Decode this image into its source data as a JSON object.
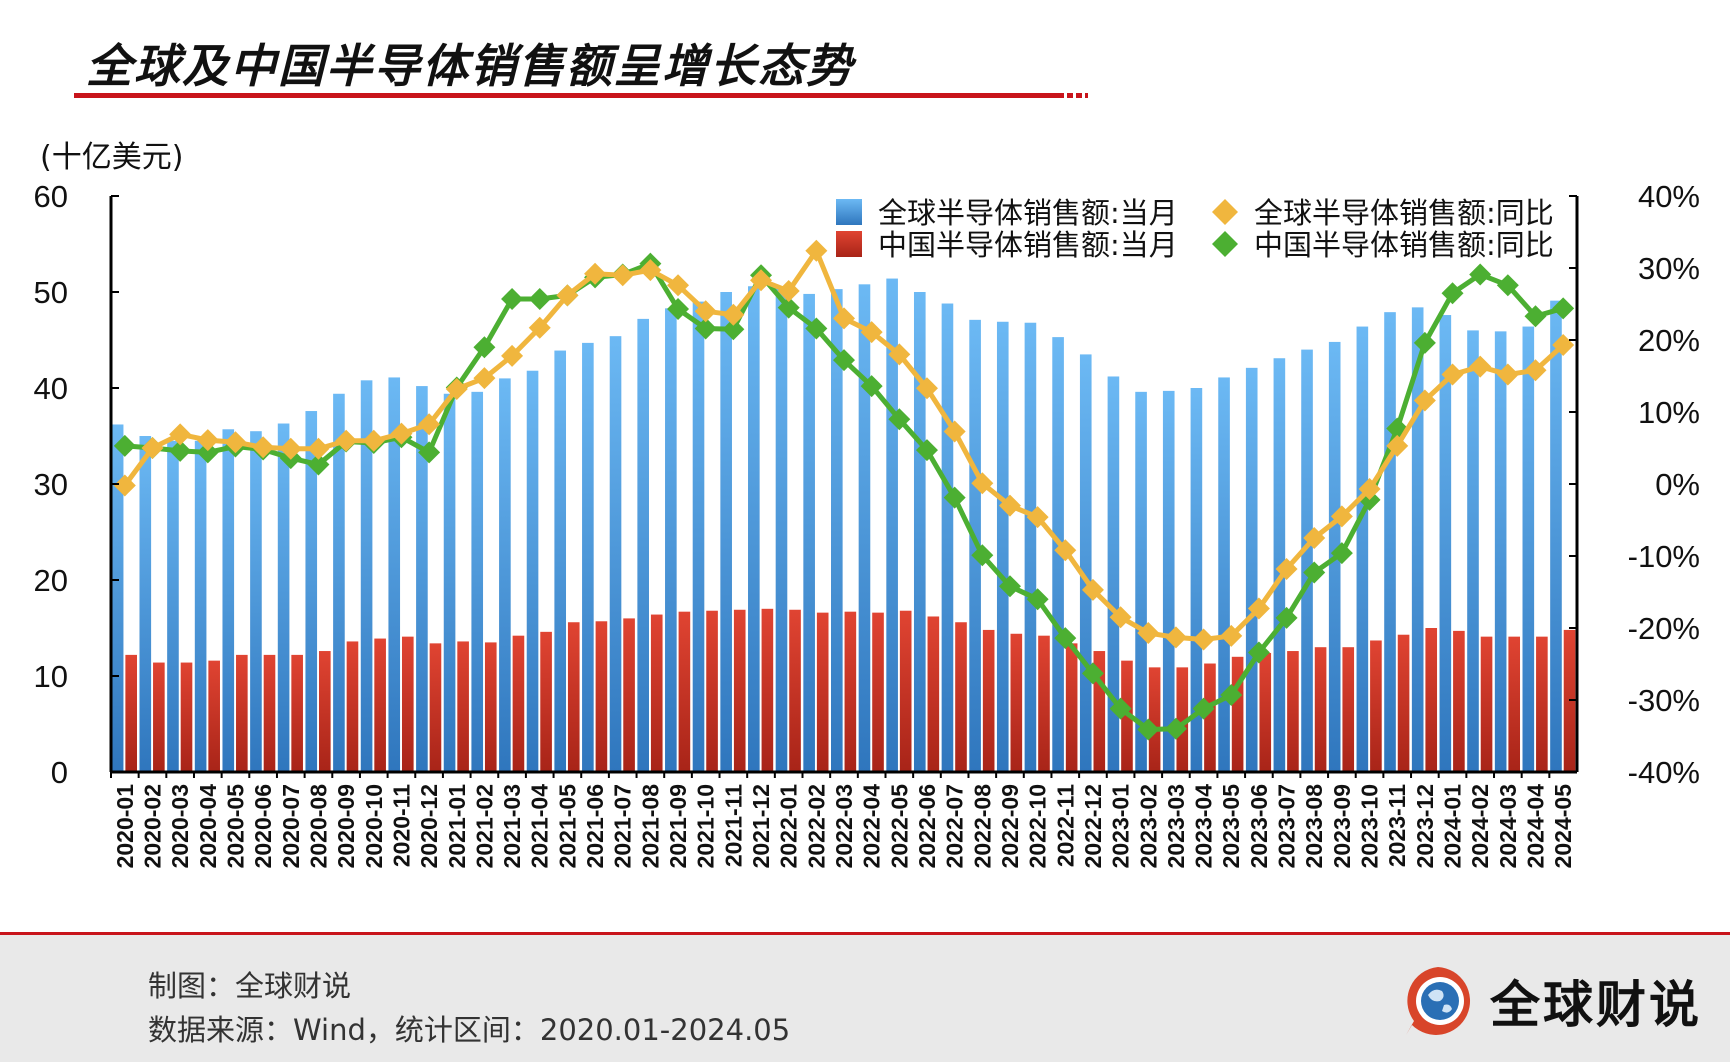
{
  "title": "全球及中国半导体销售额呈增长态势",
  "unit_label": "(十亿美元)",
  "footer": {
    "maker": "制图：全球财说",
    "source": "数据来源：Wind，统计区间：2020.01-2024.05",
    "brand": "全球财说"
  },
  "colors": {
    "global_bar": "#4a98dc",
    "china_bar": "#d23a2a",
    "global_yoy": "#f0b63e",
    "china_yoy": "#4caf32",
    "accent": "#c8141b"
  },
  "chart_data": {
    "type": "bar+line",
    "title": "全球及中国半导体销售额呈增长态势",
    "ylabel": "(十亿美元)",
    "ylim": [
      0,
      60
    ],
    "yticks": [
      "0",
      "10",
      "20",
      "30",
      "40",
      "50",
      "60"
    ],
    "y2lim": [
      -40,
      40
    ],
    "y2ticks": [
      "-40%",
      "-30%",
      "-20%",
      "-10%",
      "0%",
      "10%",
      "20%",
      "30%",
      "40%"
    ],
    "legend_position": "top-right",
    "categories": [
      "2020-01",
      "2020-02",
      "2020-03",
      "2020-04",
      "2020-05",
      "2020-06",
      "2020-07",
      "2020-08",
      "2020-09",
      "2020-10",
      "2020-11",
      "2020-12",
      "2021-01",
      "2021-02",
      "2021-03",
      "2021-04",
      "2021-05",
      "2021-06",
      "2021-07",
      "2021-08",
      "2021-09",
      "2021-10",
      "2021-11",
      "2021-12",
      "2022-01",
      "2022-02",
      "2022-03",
      "2022-04",
      "2022-05",
      "2022-06",
      "2022-07",
      "2022-08",
      "2022-09",
      "2022-10",
      "2022-11",
      "2022-12",
      "2023-01",
      "2023-02",
      "2023-03",
      "2023-04",
      "2023-05",
      "2023-06",
      "2023-07",
      "2023-08",
      "2023-09",
      "2023-10",
      "2023-11",
      "2023-12",
      "2024-01",
      "2024-02",
      "2024-03",
      "2024-04",
      "2024-05"
    ],
    "series": [
      {
        "name": "全球半导体销售额:当月",
        "type": "bar",
        "axis": "left",
        "values": [
          36.2,
          35.0,
          34.5,
          34.5,
          35.7,
          35.5,
          36.3,
          37.6,
          39.4,
          40.8,
          41.1,
          40.2,
          39.4,
          39.6,
          41.0,
          41.8,
          43.9,
          44.7,
          45.4,
          47.2,
          48.3,
          49.0,
          50.0,
          50.6,
          50.5,
          49.8,
          50.3,
          50.8,
          51.4,
          50.0,
          48.8,
          47.1,
          46.9,
          46.8,
          45.3,
          43.5,
          41.2,
          39.6,
          39.7,
          40.0,
          41.1,
          42.1,
          43.1,
          44.0,
          44.8,
          46.4,
          47.9,
          48.4,
          47.6,
          46.0,
          45.9,
          46.4,
          49.1
        ]
      },
      {
        "name": "中国半导体销售额:当月",
        "type": "bar",
        "axis": "left",
        "values": [
          12.2,
          11.4,
          11.4,
          11.6,
          12.2,
          12.2,
          12.2,
          12.6,
          13.6,
          13.9,
          14.1,
          13.4,
          13.6,
          13.5,
          14.2,
          14.6,
          15.6,
          15.7,
          16.0,
          16.4,
          16.7,
          16.8,
          16.9,
          17.0,
          16.9,
          16.6,
          16.7,
          16.6,
          16.8,
          16.2,
          15.6,
          14.8,
          14.4,
          14.2,
          13.4,
          12.6,
          11.6,
          10.9,
          10.9,
          11.3,
          12.0,
          12.4,
          12.6,
          13.0,
          13.0,
          13.7,
          14.3,
          15.0,
          14.7,
          14.1,
          14.1,
          14.1,
          14.8
        ]
      },
      {
        "name": "全球半导体销售额:同比",
        "type": "line",
        "axis": "right",
        "values": [
          -0.2,
          5.0,
          6.9,
          6.1,
          5.8,
          5.1,
          4.9,
          4.9,
          6.0,
          6.0,
          7.0,
          8.3,
          13.2,
          14.7,
          17.8,
          21.7,
          26.2,
          29.2,
          29.0,
          29.7,
          27.6,
          24.0,
          23.5,
          28.3,
          26.8,
          32.4,
          23.0,
          21.1,
          18.0,
          13.3,
          7.3,
          0.1,
          -3.0,
          -4.6,
          -9.2,
          -14.7,
          -18.5,
          -20.7,
          -21.3,
          -21.6,
          -21.1,
          -17.3,
          -11.8,
          -7.5,
          -4.5,
          -0.7,
          5.3,
          11.6,
          15.2,
          16.3,
          15.2,
          15.8,
          19.3
        ]
      },
      {
        "name": "中国半导体销售额:同比",
        "type": "line",
        "axis": "right",
        "values": [
          5.3,
          5.0,
          4.6,
          4.4,
          5.2,
          4.8,
          3.6,
          2.7,
          5.9,
          5.7,
          6.5,
          4.4,
          13.4,
          19.0,
          25.7,
          25.7,
          26.2,
          28.7,
          29.1,
          30.6,
          24.3,
          21.6,
          21.5,
          29.0,
          24.5,
          21.6,
          17.2,
          13.6,
          9.0,
          4.7,
          -1.9,
          -9.9,
          -14.2,
          -16.0,
          -21.4,
          -26.3,
          -31.2,
          -34.1,
          -34.0,
          -31.2,
          -29.3,
          -23.4,
          -18.6,
          -12.3,
          -9.6,
          -2.2,
          7.7,
          19.6,
          26.5,
          29.1,
          27.6,
          23.3,
          24.4
        ]
      }
    ]
  }
}
